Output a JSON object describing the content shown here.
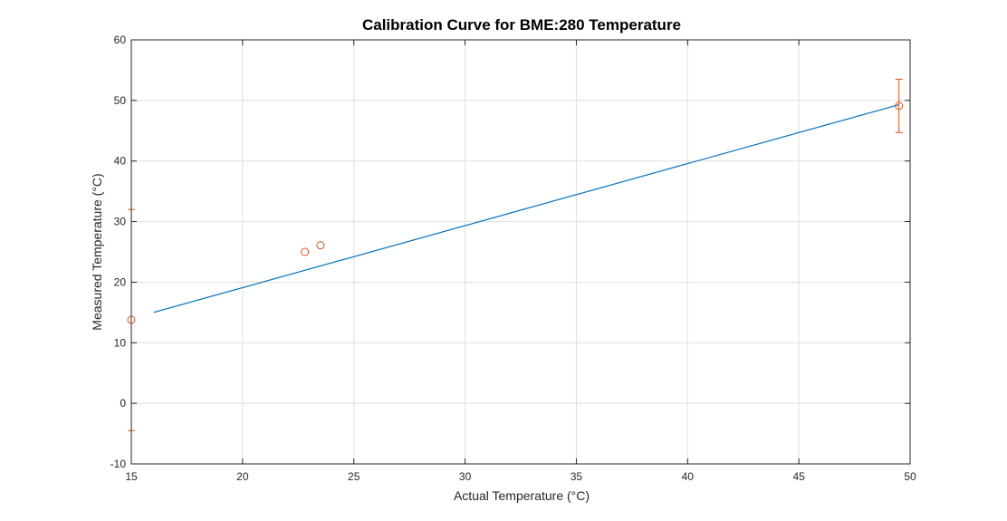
{
  "chart_data": {
    "type": "scatter",
    "title": "Calibration Curve for BME:280 Temperature",
    "xlabel": "Actual Temperature (°C)",
    "ylabel": "Measured Temperature (°C)",
    "xlim": [
      15,
      50
    ],
    "ylim": [
      -10,
      60
    ],
    "xticks": [
      15,
      20,
      25,
      30,
      35,
      40,
      45,
      50
    ],
    "yticks": [
      -10,
      0,
      10,
      20,
      30,
      40,
      50,
      60
    ],
    "grid": true,
    "legend": "none",
    "series": [
      {
        "type": "line",
        "color": "#0072BD",
        "x": [
          16,
          49.5
        ],
        "y": [
          15.0,
          49.3
        ]
      },
      {
        "type": "errorbar",
        "marker": "o",
        "color": "#D95319",
        "points": [
          {
            "x": 15.0,
            "y": 13.8,
            "ylow": -4.5,
            "yhigh": 32.0
          },
          {
            "x": 22.8,
            "y": 25.0
          },
          {
            "x": 23.5,
            "y": 26.1
          },
          {
            "x": 49.5,
            "y": 49.1,
            "ylow": 44.7,
            "yhigh": 53.5
          }
        ]
      }
    ]
  }
}
